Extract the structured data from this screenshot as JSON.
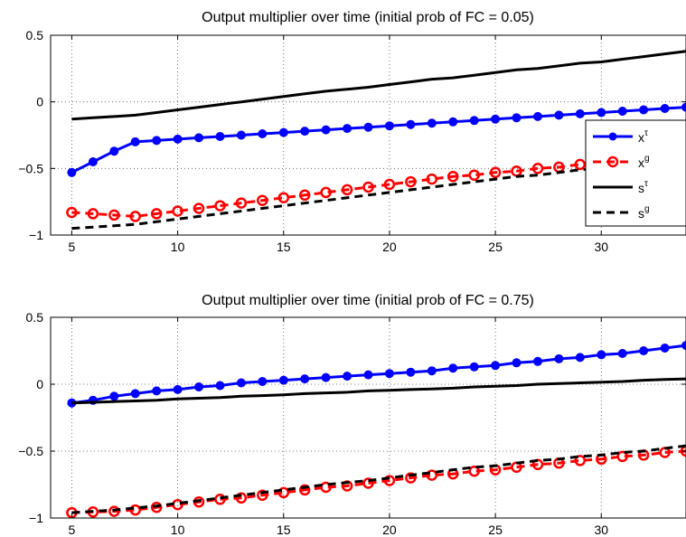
{
  "chart_data": [
    {
      "type": "line",
      "title": "Output multiplier over time (initial prob of FC = 0.05)",
      "xlim": [
        4,
        34
      ],
      "ylim": [
        -1,
        0.5
      ],
      "x_ticks": [
        5,
        10,
        15,
        20,
        25,
        30
      ],
      "y_ticks": [
        -1,
        -0.5,
        0,
        0.5
      ],
      "y_tick_labels": [
        "−1",
        "−0.5",
        "0",
        "0.5"
      ],
      "grid": true,
      "legend_position": "right",
      "x": [
        5,
        6,
        7,
        8,
        9,
        10,
        11,
        12,
        13,
        14,
        15,
        16,
        17,
        18,
        19,
        20,
        21,
        22,
        23,
        24,
        25,
        26,
        27,
        28,
        29,
        30,
        31,
        32,
        33,
        34
      ],
      "series": [
        {
          "name": "x",
          "name_sup": "τ",
          "color": "#0000ff",
          "style": "solid",
          "marker": "filled-circle",
          "values": [
            -0.53,
            -0.45,
            -0.37,
            -0.3,
            -0.29,
            -0.28,
            -0.27,
            -0.26,
            -0.25,
            -0.24,
            -0.23,
            -0.22,
            -0.21,
            -0.2,
            -0.19,
            -0.18,
            -0.17,
            -0.16,
            -0.15,
            -0.14,
            -0.13,
            -0.12,
            -0.11,
            -0.1,
            -0.09,
            -0.08,
            -0.07,
            -0.06,
            -0.05,
            -0.04
          ]
        },
        {
          "name": "x",
          "name_sup": "g",
          "color": "#ff0000",
          "style": "dashed",
          "marker": "open-circle",
          "values": [
            -0.83,
            -0.84,
            -0.85,
            -0.86,
            -0.84,
            -0.82,
            -0.8,
            -0.78,
            -0.76,
            -0.74,
            -0.72,
            -0.7,
            -0.68,
            -0.66,
            -0.64,
            -0.62,
            -0.6,
            -0.58,
            -0.56,
            -0.55,
            -0.53,
            -0.52,
            -0.5,
            -0.49,
            -0.47,
            -0.46,
            -0.44,
            -0.43,
            -0.41,
            -0.39
          ]
        },
        {
          "name": "s",
          "name_sup": "τ",
          "color": "#000000",
          "style": "solid",
          "marker": "none",
          "values": [
            -0.13,
            -0.12,
            -0.11,
            -0.1,
            -0.08,
            -0.06,
            -0.04,
            -0.02,
            0.0,
            0.02,
            0.04,
            0.06,
            0.08,
            0.095,
            0.11,
            0.13,
            0.15,
            0.17,
            0.18,
            0.2,
            0.22,
            0.24,
            0.25,
            0.27,
            0.29,
            0.3,
            0.32,
            0.34,
            0.36,
            0.38
          ]
        },
        {
          "name": "s",
          "name_sup": "g",
          "color": "#000000",
          "style": "dashed",
          "marker": "none",
          "values": [
            -0.95,
            -0.94,
            -0.93,
            -0.92,
            -0.9,
            -0.88,
            -0.86,
            -0.84,
            -0.82,
            -0.8,
            -0.78,
            -0.76,
            -0.74,
            -0.72,
            -0.7,
            -0.68,
            -0.66,
            -0.64,
            -0.62,
            -0.6,
            -0.58,
            -0.56,
            -0.55,
            -0.53,
            -0.51,
            -0.5,
            -0.48,
            -0.46,
            -0.45,
            -0.43
          ]
        }
      ]
    },
    {
      "type": "line",
      "title": "Output multiplier over time (initial prob of FC = 0.75)",
      "xlim": [
        4,
        34
      ],
      "ylim": [
        -1,
        0.5
      ],
      "x_ticks": [
        5,
        10,
        15,
        20,
        25,
        30
      ],
      "y_ticks": [
        -1,
        -0.5,
        0,
        0.5
      ],
      "y_tick_labels": [
        "−1",
        "−0.5",
        "0",
        "0.5"
      ],
      "grid": true,
      "x": [
        5,
        6,
        7,
        8,
        9,
        10,
        11,
        12,
        13,
        14,
        15,
        16,
        17,
        18,
        19,
        20,
        21,
        22,
        23,
        24,
        25,
        26,
        27,
        28,
        29,
        30,
        31,
        32,
        33,
        34
      ],
      "series": [
        {
          "color": "#0000ff",
          "style": "solid",
          "marker": "filled-circle",
          "values": [
            -0.14,
            -0.12,
            -0.09,
            -0.07,
            -0.05,
            -0.04,
            -0.02,
            -0.01,
            0.01,
            0.02,
            0.03,
            0.04,
            0.05,
            0.06,
            0.07,
            0.08,
            0.09,
            0.1,
            0.12,
            0.13,
            0.14,
            0.16,
            0.17,
            0.19,
            0.2,
            0.22,
            0.23,
            0.25,
            0.27,
            0.29
          ]
        },
        {
          "color": "#ff0000",
          "style": "dashed",
          "marker": "open-circle",
          "values": [
            -0.96,
            -0.955,
            -0.95,
            -0.94,
            -0.92,
            -0.9,
            -0.88,
            -0.86,
            -0.85,
            -0.83,
            -0.81,
            -0.79,
            -0.77,
            -0.76,
            -0.74,
            -0.72,
            -0.7,
            -0.68,
            -0.67,
            -0.65,
            -0.64,
            -0.62,
            -0.6,
            -0.59,
            -0.57,
            -0.56,
            -0.54,
            -0.53,
            -0.51,
            -0.5
          ]
        },
        {
          "color": "#000000",
          "style": "solid",
          "marker": "none",
          "values": [
            -0.14,
            -0.135,
            -0.13,
            -0.125,
            -0.12,
            -0.11,
            -0.105,
            -0.1,
            -0.09,
            -0.085,
            -0.08,
            -0.07,
            -0.065,
            -0.06,
            -0.05,
            -0.045,
            -0.04,
            -0.035,
            -0.03,
            -0.02,
            -0.015,
            -0.01,
            0.0,
            0.005,
            0.01,
            0.015,
            0.02,
            0.03,
            0.035,
            0.04
          ]
        },
        {
          "color": "#000000",
          "style": "dashed",
          "marker": "none",
          "values": [
            -0.96,
            -0.95,
            -0.94,
            -0.925,
            -0.91,
            -0.89,
            -0.87,
            -0.85,
            -0.83,
            -0.81,
            -0.79,
            -0.77,
            -0.75,
            -0.735,
            -0.72,
            -0.7,
            -0.68,
            -0.66,
            -0.64,
            -0.62,
            -0.61,
            -0.59,
            -0.57,
            -0.56,
            -0.54,
            -0.53,
            -0.51,
            -0.5,
            -0.48,
            -0.46
          ]
        }
      ]
    }
  ]
}
